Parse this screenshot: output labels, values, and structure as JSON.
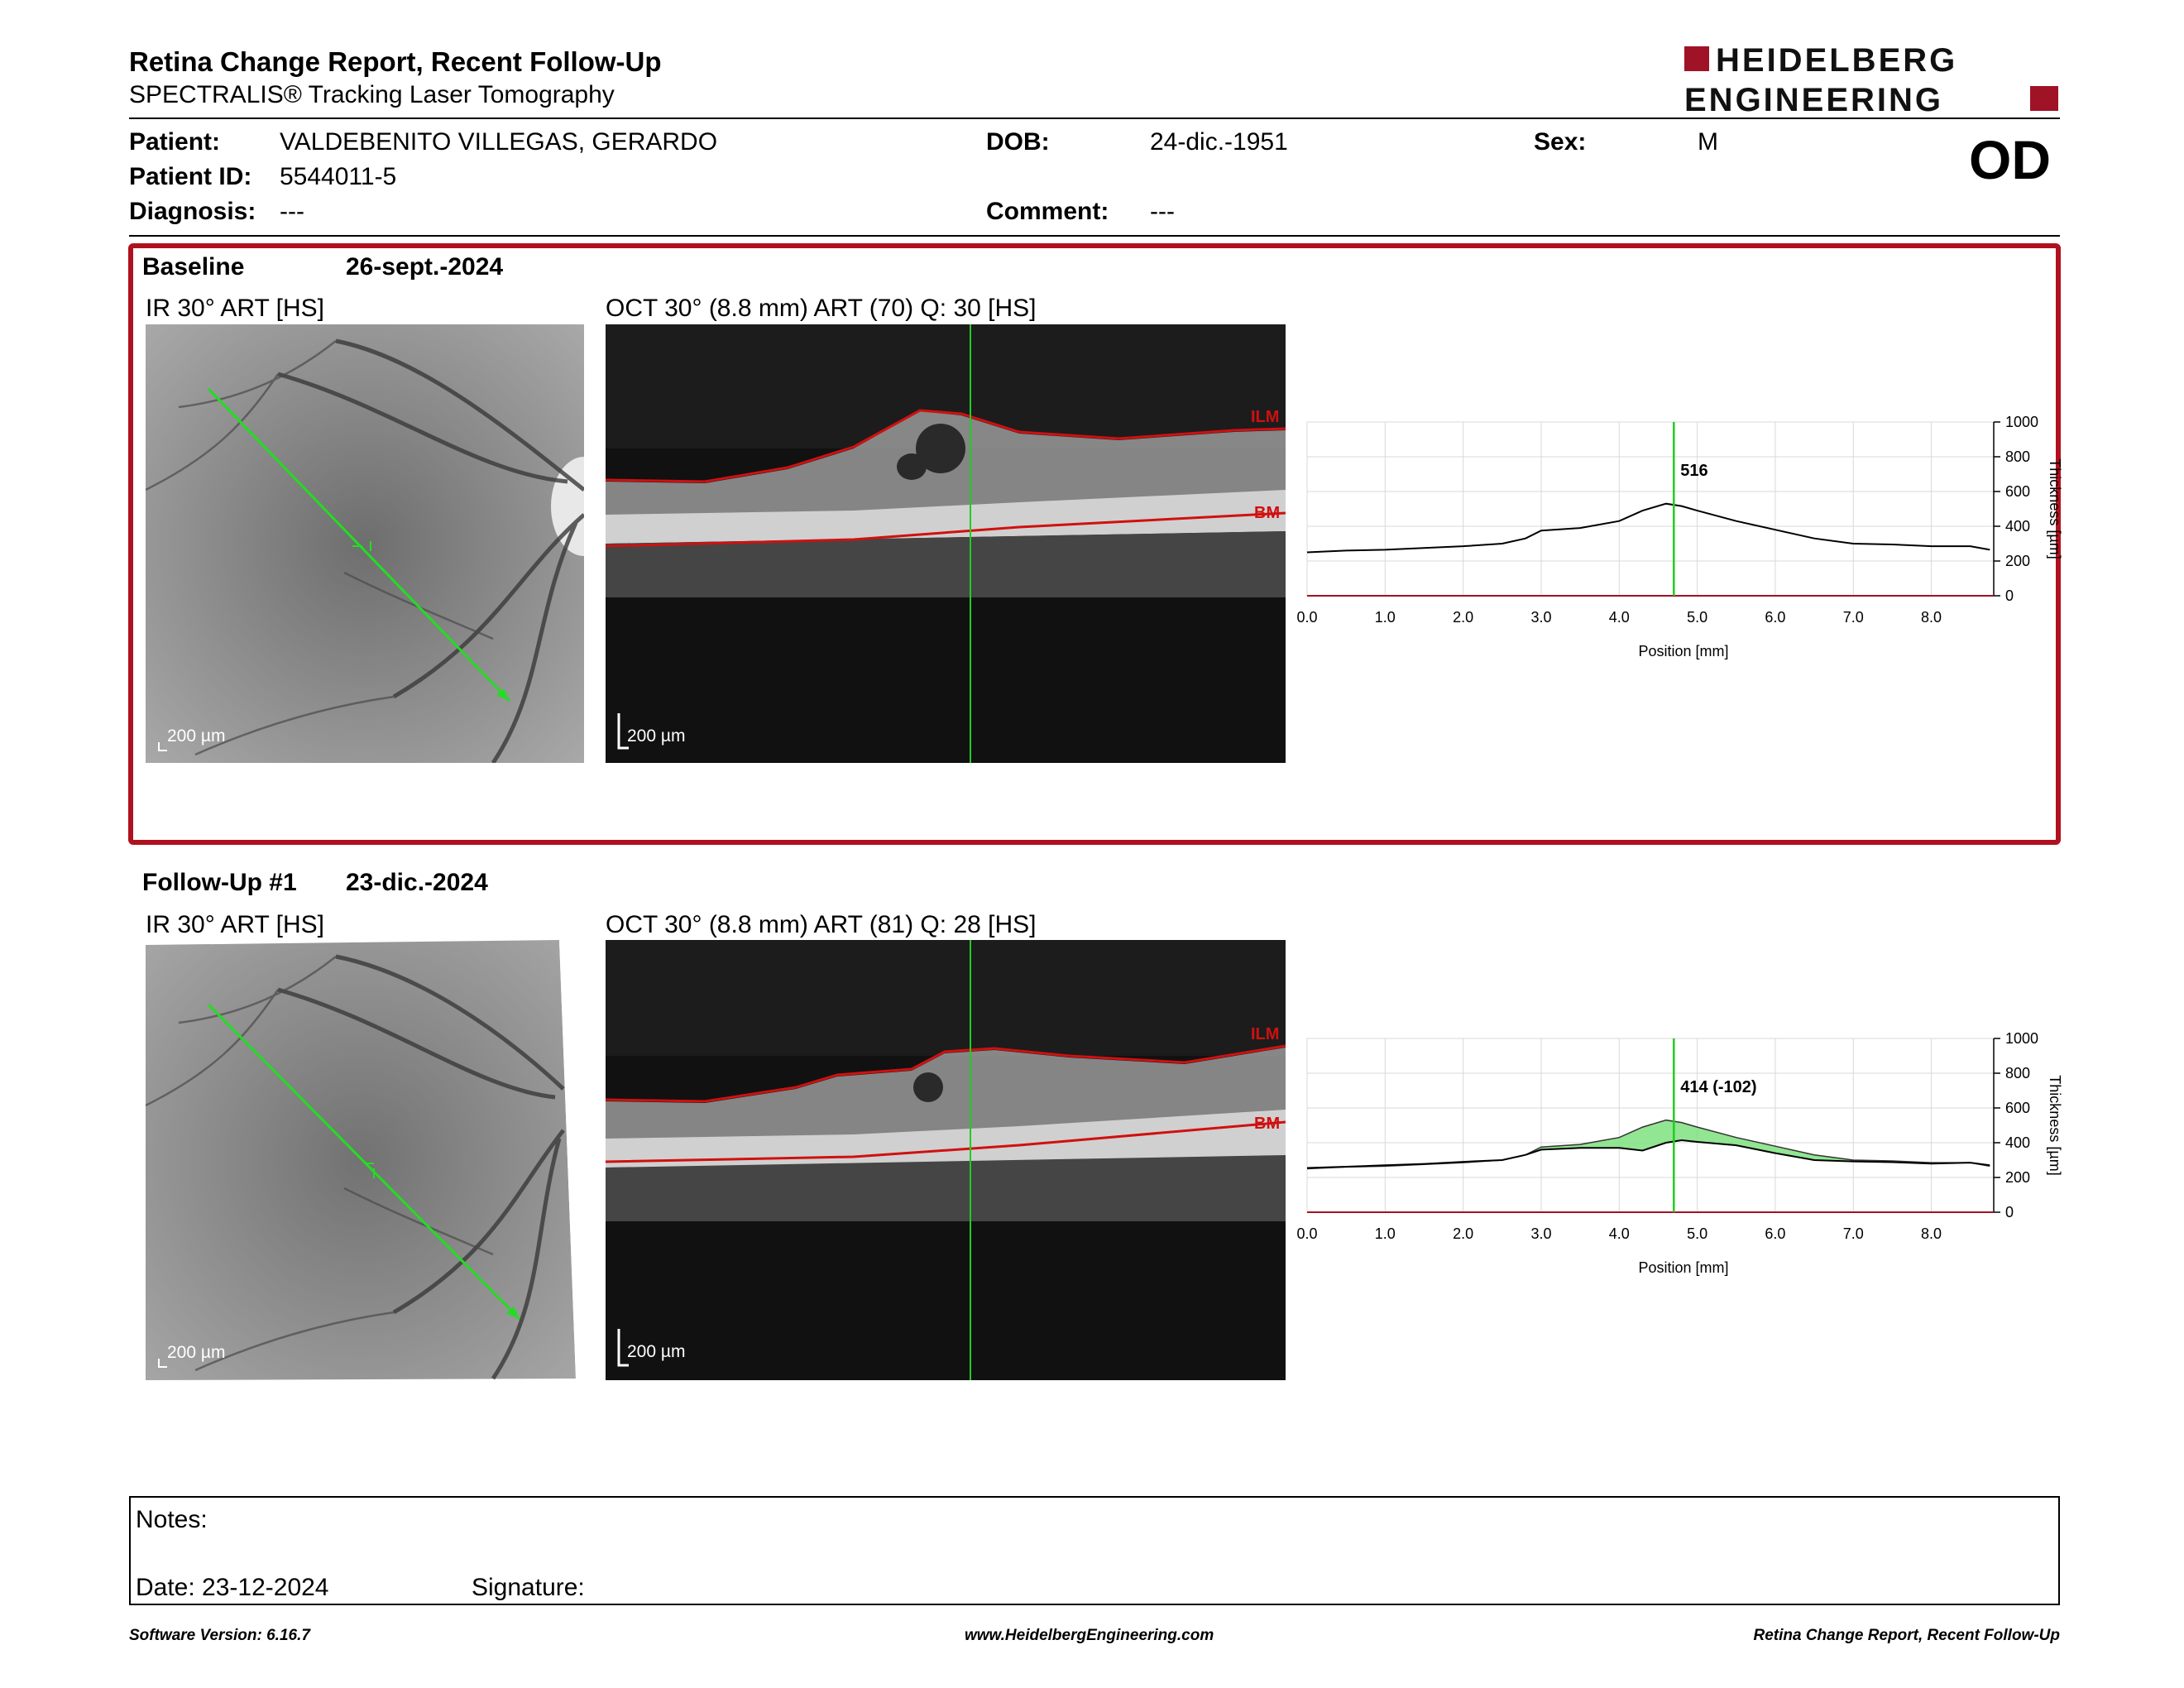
{
  "header": {
    "title": "Retina Change Report, Recent Follow-Up",
    "subtitle": "SPECTRALIS® Tracking Laser Tomography",
    "logo_line1": "HEIDELBERG",
    "logo_line2": "ENGINEERING",
    "eye": "OD"
  },
  "patient": {
    "patient_label": "Patient:",
    "patient_value": "VALDEBENITO VILLEGAS, GERARDO",
    "id_label": "Patient ID:",
    "id_value": "5544011-5",
    "diagnosis_label": "Diagnosis:",
    "diagnosis_value": "---",
    "dob_label": "DOB:",
    "dob_value": "24-dic.-1951",
    "comment_label": "Comment:",
    "comment_value": "---",
    "sex_label": "Sex:",
    "sex_value": "M"
  },
  "baseline": {
    "label": "Baseline",
    "date": "26-sept.-2024",
    "ir_title": "IR 30° ART [HS]",
    "oct_title": "OCT 30° (8.8 mm) ART (70) Q: 30 [HS]",
    "scale": "200 µm",
    "ilm": "ILM",
    "bm": "BM",
    "marker_label": "516"
  },
  "followup": {
    "label": "Follow-Up #1",
    "date": "23-dic.-2024",
    "ir_title": "IR 30° ART [HS]",
    "oct_title": "OCT 30° (8.8 mm) ART (81) Q: 28 [HS]",
    "scale": "200 µm",
    "ilm": "ILM",
    "bm": "BM",
    "marker_label": "414 (-102)"
  },
  "chart_data": [
    {
      "type": "line",
      "xlabel": "Position [mm]",
      "ylabel": "Thickness [µm]",
      "xlim": [
        0,
        8.8
      ],
      "ylim": [
        0,
        1000
      ],
      "xticks": [
        "0.0",
        "1.0",
        "2.0",
        "3.0",
        "4.0",
        "5.0",
        "6.0",
        "7.0",
        "8.0"
      ],
      "yticks": [
        "0",
        "200",
        "400",
        "600",
        "800",
        "1000"
      ],
      "marker_x": 4.7,
      "series": [
        {
          "values_x": [
            0,
            0.5,
            1,
            1.5,
            2,
            2.5,
            2.8,
            3,
            3.5,
            4,
            4.3,
            4.6,
            4.8,
            5,
            5.5,
            6,
            6.5,
            7,
            7.5,
            8,
            8.5,
            8.75
          ],
          "values_y": [
            250,
            260,
            265,
            275,
            285,
            300,
            330,
            375,
            390,
            430,
            490,
            530,
            516,
            490,
            430,
            380,
            330,
            300,
            295,
            285,
            285,
            265
          ]
        }
      ]
    },
    {
      "type": "area",
      "xlabel": "Position [mm]",
      "ylabel": "Thickness [µm]",
      "xlim": [
        0,
        8.8
      ],
      "ylim": [
        0,
        1000
      ],
      "xticks": [
        "0.0",
        "1.0",
        "2.0",
        "3.0",
        "4.0",
        "5.0",
        "6.0",
        "7.0",
        "8.0"
      ],
      "yticks": [
        "0",
        "200",
        "400",
        "600",
        "800",
        "1000"
      ],
      "marker_x": 4.7,
      "series": [
        {
          "values_x": [
            0,
            0.5,
            1,
            1.5,
            2,
            2.5,
            2.8,
            3,
            3.5,
            4,
            4.3,
            4.6,
            4.8,
            5,
            5.5,
            6,
            6.5,
            7,
            7.5,
            8,
            8.5,
            8.75
          ],
          "values_y": [
            250,
            260,
            265,
            275,
            285,
            300,
            330,
            375,
            390,
            430,
            490,
            530,
            516,
            490,
            430,
            380,
            330,
            300,
            295,
            285,
            285,
            265
          ]
        },
        {
          "values_x": [
            0,
            0.5,
            1,
            1.5,
            2,
            2.5,
            2.8,
            3,
            3.5,
            4,
            4.3,
            4.6,
            4.8,
            5,
            5.5,
            6,
            6.5,
            7,
            7.5,
            8,
            8.5,
            8.75
          ],
          "values_y": [
            255,
            262,
            270,
            278,
            290,
            300,
            330,
            360,
            370,
            370,
            355,
            400,
            414,
            405,
            385,
            340,
            300,
            292,
            288,
            280,
            285,
            270
          ]
        }
      ],
      "fill_color": "#7fe07f"
    }
  ],
  "notes": {
    "label": "Notes:",
    "date": "Date: 23-12-2024",
    "signature": "Signature:"
  },
  "footer": {
    "left": "Software Version: 6.16.7",
    "center": "www.HeidelbergEngineering.com",
    "right": "Retina Change Report, Recent Follow-Up"
  },
  "colors": {
    "accent_red": "#b0111f",
    "marker_green": "#22cc22",
    "ilm_red": "#d01010"
  }
}
